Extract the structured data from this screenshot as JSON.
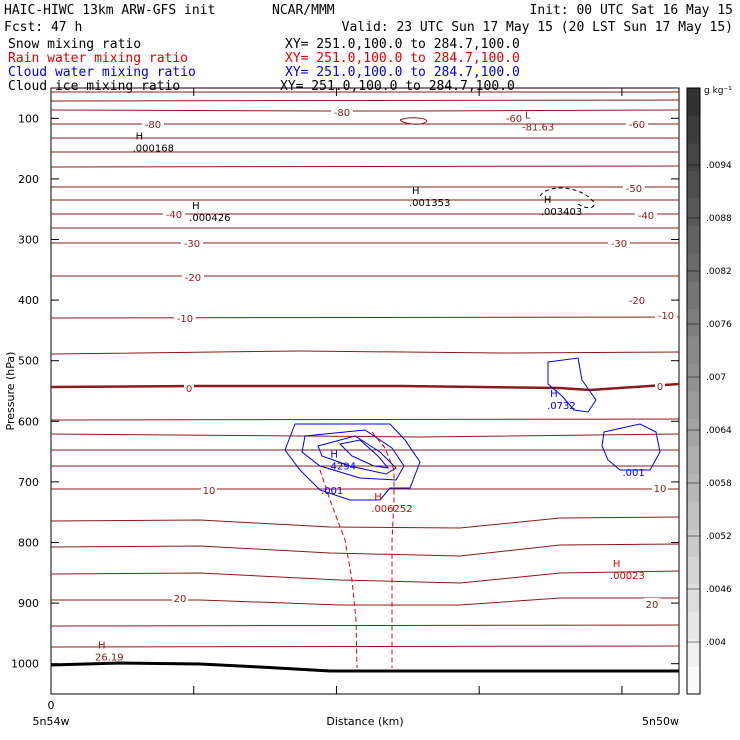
{
  "header": {
    "line1_left": "HAIC-HIWC 13km ARW-GFS init",
    "line1_mid": "NCAR/MMM",
    "line1_right": "Init: 00 UTC Sat 16 May 15",
    "fcst": "Fcst:   47 h",
    "valid": "Valid: 23 UTC Sun 17 May 15 (20 LST Sun 17 May 15)",
    "fields": [
      {
        "name": "Snow mixing ratio",
        "xy": "XY= 251.0,100.0 to 284.7,100.0",
        "color": "#000000"
      },
      {
        "name": "Rain water mixing ratio",
        "xy": "XY= 251.0,100.0 to 284.7,100.0",
        "color": "#e00000"
      },
      {
        "name": "Cloud water mixing ratio",
        "xy": "XY= 251.0,100.0 to 284.7,100.0",
        "color": "#0000e0"
      },
      {
        "name": "Cloud ice mixing ratio",
        "xy": "XY= 251.0,100.0 to 284.7,100.0",
        "color": "#000000"
      }
    ]
  },
  "chart_data": {
    "type": "contour cross-section",
    "ylabel": "Pressure (hPa)",
    "xlabel": "Distance (km)",
    "ylim": [
      1050,
      50
    ],
    "y_ticks": [
      100,
      200,
      300,
      400,
      500,
      600,
      700,
      800,
      900,
      1000
    ],
    "x_tick_labels": {
      "origin": "0",
      "left": "5n54w",
      "right": "5n50w"
    },
    "colorbar": {
      "units": "g kg⁻¹",
      "labels": [
        ".004",
        ".0046",
        ".0052",
        ".0058",
        ".0064",
        ".007",
        ".0076",
        ".0082",
        ".0088",
        ".0094"
      ]
    },
    "temperature_labels": [
      "-80",
      "-80",
      "-60",
      "-60",
      "-50",
      "-40",
      "-40",
      "-30",
      "-30",
      "-20",
      "-20",
      "-10",
      "-10",
      "0",
      "0",
      "10",
      "10",
      "20",
      "20"
    ],
    "extrema": [
      {
        "kind": "L",
        "value": "-81.63",
        "color": "#8b1a1a",
        "distance_frac": 0.75,
        "pressure": 105
      },
      {
        "kind": "H",
        "value": ".000168",
        "color": "#000000",
        "distance_frac": 0.13,
        "pressure": 140
      },
      {
        "kind": "H",
        "value": ".001353",
        "color": "#000000",
        "distance_frac": 0.57,
        "pressure": 230
      },
      {
        "kind": "H",
        "value": ".003403",
        "color": "#000000",
        "distance_frac": 0.78,
        "pressure": 245
      },
      {
        "kind": "H",
        "value": ".000426",
        "color": "#000000",
        "distance_frac": 0.22,
        "pressure": 255
      },
      {
        "kind": "H",
        "value": ".0732",
        "color": "#0000e0",
        "distance_frac": 0.79,
        "pressure": 565
      },
      {
        "kind": "H",
        "value": ".4294",
        "color": "#0000e0",
        "distance_frac": 0.44,
        "pressure": 665
      },
      {
        "kind": "",
        "value": ".001",
        "color": "#0000e0",
        "distance_frac": 0.91,
        "pressure": 675
      },
      {
        "kind": "",
        "value": ".001",
        "color": "#0000e0",
        "distance_frac": 0.43,
        "pressure": 705
      },
      {
        "kind": "H",
        "value": ".006252",
        "color": "#e00000",
        "distance_frac": 0.51,
        "pressure": 735
      },
      {
        "kind": "H",
        "value": ".00023",
        "color": "#e00000",
        "distance_frac": 0.89,
        "pressure": 845
      },
      {
        "kind": "H",
        "value": "26.19",
        "color": "#8b1a1a",
        "distance_frac": 0.07,
        "pressure": 980
      }
    ]
  },
  "colors": {
    "temperature": "#8b1a1a",
    "rain": "#e00000",
    "cloud_water": "#0000e0",
    "terrain": "#000000"
  }
}
